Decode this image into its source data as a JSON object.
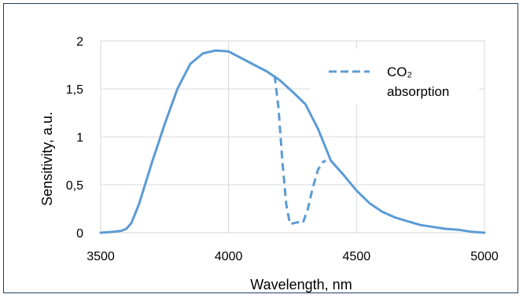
{
  "chart_data": {
    "type": "line",
    "title": "",
    "xlabel": "Wavelength, nm",
    "ylabel": "Sensitivity, a.u.",
    "xlim": [
      3500,
      5000
    ],
    "ylim": [
      0,
      2
    ],
    "x_ticks": [
      "3500",
      "4000",
      "4500",
      "5000"
    ],
    "x_tick_values": [
      3500,
      4000,
      4500,
      5000
    ],
    "y_ticks": [
      "0",
      "0,5",
      "1",
      "1,5",
      "2"
    ],
    "y_tick_values": [
      0,
      0.5,
      1,
      1.5,
      2
    ],
    "grid": "horizontal and vertical",
    "legend_position": "top-right",
    "series": [
      {
        "style": "solid",
        "color": "#5b9bd5",
        "x": [
          3500,
          3550,
          3580,
          3600,
          3620,
          3650,
          3700,
          3750,
          3800,
          3850,
          3900,
          3950,
          4000,
          4050,
          4100,
          4150,
          4200,
          4250,
          4300,
          4350,
          4400,
          4450,
          4500,
          4550,
          4600,
          4650,
          4700,
          4750,
          4800,
          4850,
          4900,
          4950,
          5000
        ],
        "y": [
          0.0,
          0.01,
          0.02,
          0.04,
          0.1,
          0.3,
          0.73,
          1.13,
          1.5,
          1.76,
          1.87,
          1.9,
          1.89,
          1.82,
          1.75,
          1.68,
          1.59,
          1.47,
          1.34,
          1.08,
          0.75,
          0.6,
          0.44,
          0.31,
          0.22,
          0.16,
          0.12,
          0.08,
          0.06,
          0.04,
          0.03,
          0.01,
          0.0
        ]
      },
      {
        "name": "CO₂ absorption",
        "style": "dashed",
        "color": "#5b9bd5",
        "x": [
          4180,
          4195,
          4210,
          4225,
          4240,
          4255,
          4270,
          4290,
          4310,
          4330,
          4350,
          4370,
          4380
        ],
        "y": [
          1.64,
          1.3,
          0.75,
          0.3,
          0.09,
          0.1,
          0.11,
          0.1,
          0.25,
          0.48,
          0.66,
          0.74,
          0.75
        ]
      }
    ]
  }
}
